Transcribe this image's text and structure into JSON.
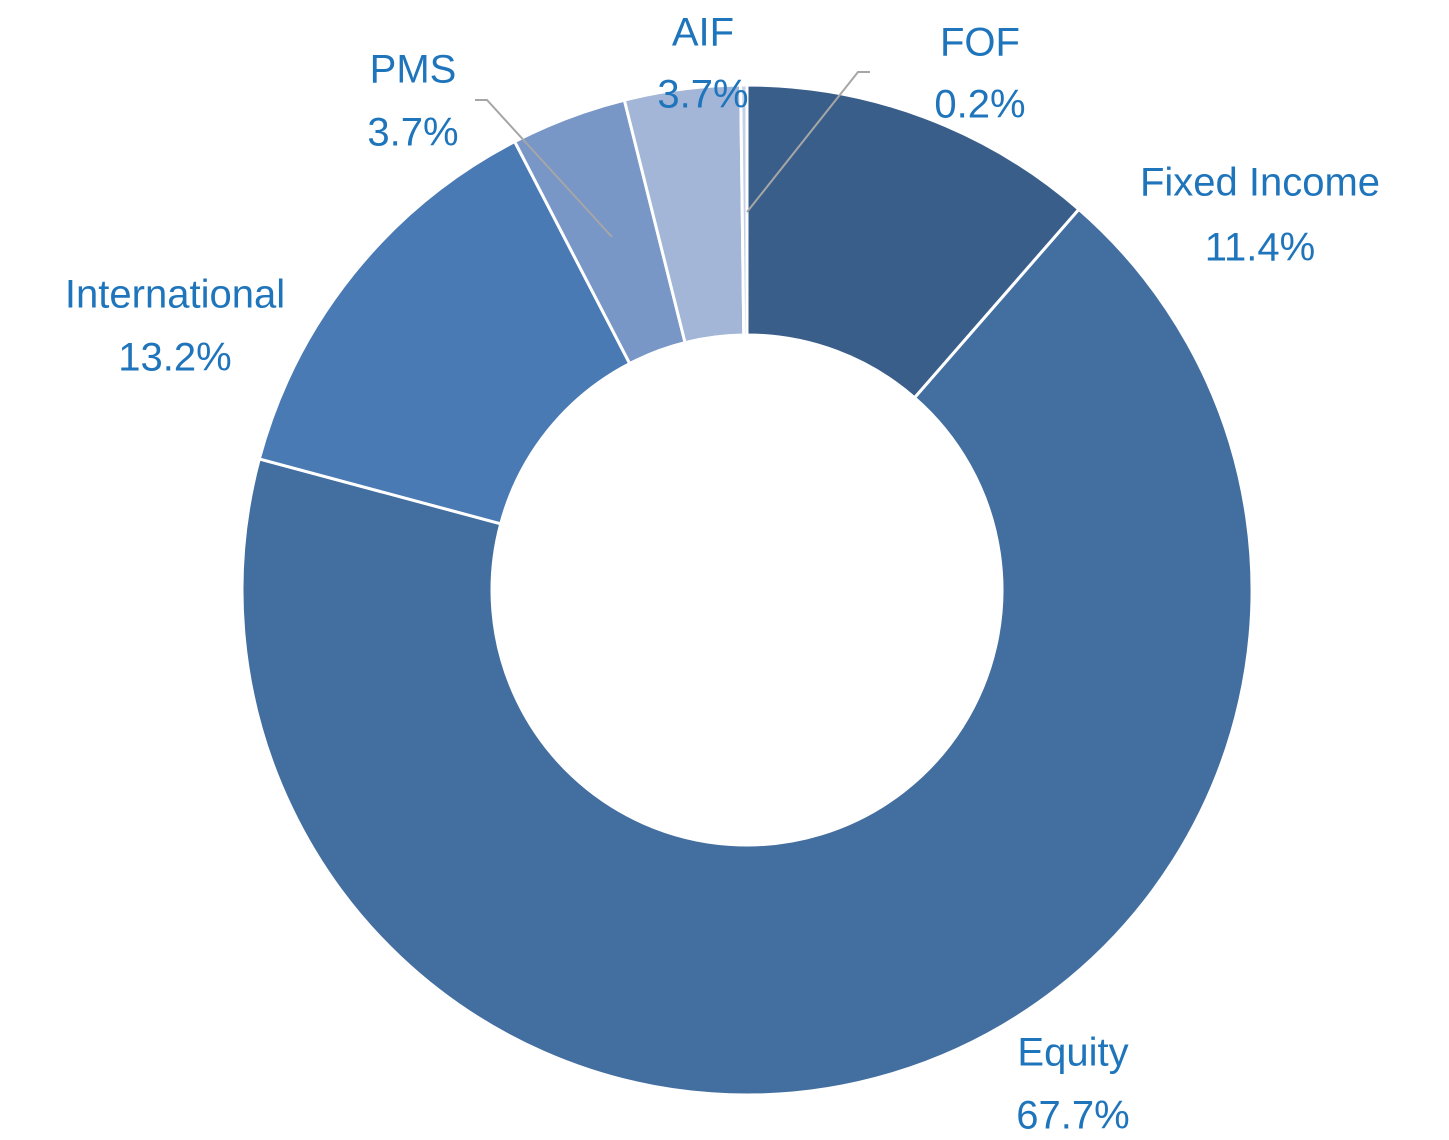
{
  "chart_data": {
    "type": "donut",
    "categories": [
      "Fixed Income",
      "Equity",
      "International",
      "PMS",
      "AIF",
      "FOF"
    ],
    "values": [
      11.4,
      67.7,
      13.2,
      3.7,
      3.7,
      0.2
    ],
    "value_labels": [
      "11.4%",
      "67.7%",
      "13.2%",
      "3.7%",
      "3.7%",
      "0.2%"
    ],
    "colors": [
      "#3a5e8a",
      "#436ea0",
      "#4a7ab4",
      "#7896c6",
      "#a3b6d7",
      "#c3d0e8"
    ]
  }
}
